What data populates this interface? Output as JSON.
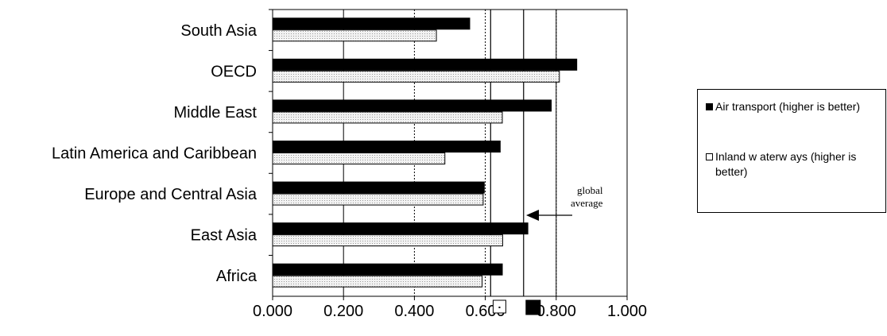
{
  "chart_data": {
    "type": "bar",
    "orientation": "horizontal",
    "categories": [
      "South Asia",
      "OECD",
      "Middle East",
      "Latin America and Caribbean",
      "Europe and Central Asia",
      "East Asia",
      "Africa"
    ],
    "series": [
      {
        "name": "Air transport (higher is better)",
        "values": [
          0.556,
          0.858,
          0.786,
          0.642,
          0.597,
          0.72,
          0.648
        ],
        "color": "#000000"
      },
      {
        "name": "Inland w aterw ays (higher is better)",
        "values": [
          0.462,
          0.809,
          0.648,
          0.486,
          0.594,
          0.649,
          0.591
        ],
        "color": "#e6e6e6"
      }
    ],
    "xticks": [
      "0.000",
      "0.200",
      "0.400",
      "0.600",
      "0.800",
      "1.000"
    ],
    "xlim": [
      0,
      1
    ],
    "reference_lines": [
      0.615,
      0.708
    ],
    "global_average_markers": {
      "inland_waterways": 0.64,
      "air_transport": 0.735
    },
    "annotation": "global\naverage",
    "legend_position": "right",
    "title": "",
    "xlabel": "",
    "ylabel": ""
  }
}
